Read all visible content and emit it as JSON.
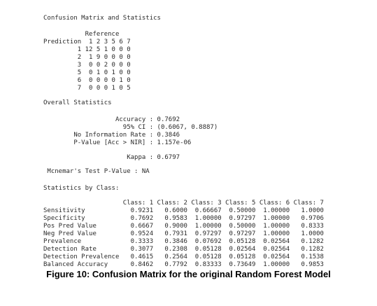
{
  "heading": "Confusion Matrix and Statistics",
  "matrix": {
    "reference_label": "Reference",
    "prediction_label": "Prediction",
    "classes": [
      "1",
      "2",
      "3",
      "5",
      "6",
      "7"
    ],
    "rows": [
      [
        "12",
        "5",
        "1",
        "0",
        "0",
        "0"
      ],
      [
        "1",
        "9",
        "0",
        "0",
        "0",
        "0"
      ],
      [
        "0",
        "0",
        "2",
        "0",
        "0",
        "0"
      ],
      [
        "0",
        "1",
        "0",
        "1",
        "0",
        "0"
      ],
      [
        "0",
        "0",
        "0",
        "0",
        "1",
        "0"
      ],
      [
        "0",
        "0",
        "0",
        "1",
        "0",
        "5"
      ]
    ]
  },
  "overall": {
    "title": "Overall Statistics",
    "stats": [
      {
        "label": "Accuracy",
        "value": "0.7692"
      },
      {
        "label": "95% CI",
        "value": "(0.6067, 0.8887)"
      },
      {
        "label": "No Information Rate",
        "value": "0.3846"
      },
      {
        "label": "P-Value [Acc > NIR]",
        "value": "1.157e-06"
      }
    ],
    "kappa": {
      "label": "Kappa",
      "value": "0.6797"
    },
    "mcnemar": {
      "label": "Mcnemar's Test P-Value",
      "value": "NA"
    }
  },
  "by_class": {
    "title": "Statistics by Class:",
    "columns": [
      "Class: 1",
      "Class: 2",
      "Class: 3",
      "Class: 5",
      "Class: 6",
      "Class: 7"
    ],
    "rows": [
      {
        "label": "Sensitivity",
        "values": [
          "0.9231",
          "0.6000",
          "0.66667",
          "0.50000",
          "1.00000",
          "1.0000"
        ]
      },
      {
        "label": "Specificity",
        "values": [
          "0.7692",
          "0.9583",
          "1.00000",
          "0.97297",
          "1.00000",
          "0.9706"
        ]
      },
      {
        "label": "Pos Pred Value",
        "values": [
          "0.6667",
          "0.9000",
          "1.00000",
          "0.50000",
          "1.00000",
          "0.8333"
        ]
      },
      {
        "label": "Neg Pred Value",
        "values": [
          "0.9524",
          "0.7931",
          "0.97297",
          "0.97297",
          "1.00000",
          "1.0000"
        ]
      },
      {
        "label": "Prevalence",
        "values": [
          "0.3333",
          "0.3846",
          "0.07692",
          "0.05128",
          "0.02564",
          "0.1282"
        ]
      },
      {
        "label": "Detection Rate",
        "values": [
          "0.3077",
          "0.2308",
          "0.05128",
          "0.02564",
          "0.02564",
          "0.1282"
        ]
      },
      {
        "label": "Detection Prevalence",
        "values": [
          "0.4615",
          "0.2564",
          "0.05128",
          "0.05128",
          "0.02564",
          "0.1538"
        ]
      },
      {
        "label": "Balanced Accuracy",
        "values": [
          "0.8462",
          "0.7792",
          "0.83333",
          "0.73649",
          "1.00000",
          "0.9853"
        ]
      }
    ]
  },
  "caption": "Figure 10: Confusion Matrix for the original Random Forest Model"
}
